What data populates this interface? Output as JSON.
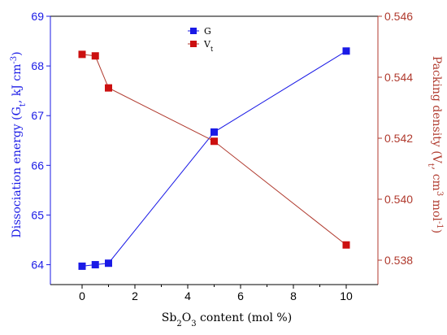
{
  "chart_data": {
    "type": "line",
    "x": [
      0,
      0.5,
      1,
      5,
      10
    ],
    "xlim": [
      -1.2,
      11.2
    ],
    "xticks": [
      0,
      2,
      4,
      6,
      8,
      10
    ],
    "xlabel": {
      "pre": "Sb",
      "sub1": "2",
      "mid": "O",
      "sub2": "3",
      "post": " content (mol %)"
    },
    "y_left": {
      "label": {
        "pre": "Dissociation energy (G",
        "sub": "t",
        "post": ", kJ cm",
        "sup": "-3",
        "end": ")"
      },
      "lim": [
        63.6,
        69.0
      ],
      "ticks": [
        64,
        65,
        66,
        67,
        68,
        69
      ],
      "color": "#1a1ae6"
    },
    "y_right": {
      "label": {
        "pre": "Packing density (V",
        "sub": "t",
        "post": ", cm",
        "sup1": "3",
        "mid": " mol",
        "sup2": "-1",
        "end": ")"
      },
      "lim": [
        0.5372,
        0.546
      ],
      "ticks": [
        0.538,
        0.54,
        0.542,
        0.544,
        0.546
      ],
      "color": "#b03a2e"
    },
    "series": [
      {
        "name": "G",
        "name_sub": "",
        "axis": "left",
        "color": "#1a1ae6",
        "marker_color": "#1a1ae6",
        "values": [
          63.97,
          64.0,
          64.03,
          66.67,
          68.3
        ]
      },
      {
        "name": "V",
        "name_sub": "t",
        "axis": "right",
        "color": "#b03a2e",
        "marker_color": "#cc1010",
        "values": [
          0.54475,
          0.5447,
          0.54365,
          0.5419,
          0.5385
        ]
      }
    ],
    "legend": "top-left",
    "grid": false
  }
}
